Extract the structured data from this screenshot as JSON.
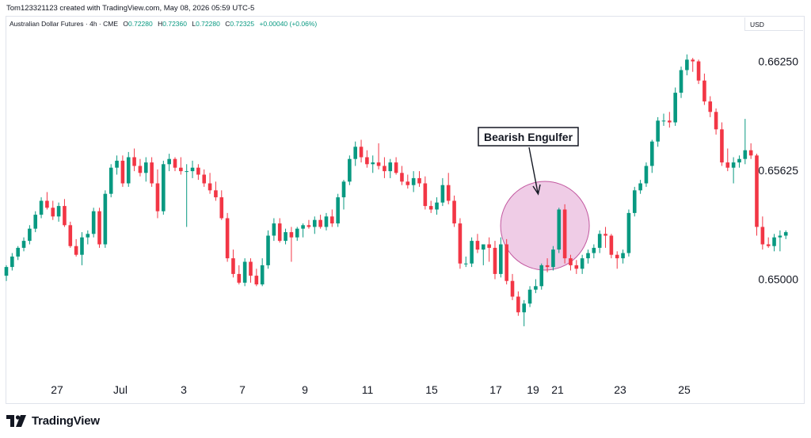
{
  "header": {
    "credit": "Tom123321123 created with TradingView.com, May 08, 2026 05:59 UTC-5"
  },
  "legend": {
    "symbol": "Australian Dollar Futures · 4h · CME",
    "open_label": "O",
    "open": "0.72280",
    "high_label": "H",
    "high": "0.72360",
    "low_label": "L",
    "low": "0.72280",
    "close_label": "C",
    "close": "0.72325",
    "change": "+0.00040 (+0.06%)"
  },
  "currency": "USD",
  "brand": {
    "name": "TradingView"
  },
  "colors": {
    "up": "#089981",
    "down": "#f23645",
    "highlight_fill": "#e1a3d1",
    "highlight_stroke": "#c2579f"
  },
  "annotation": {
    "label": "Bearish Engulfer"
  },
  "chart_data": {
    "type": "candlestick",
    "ylim": [
      0.6468,
      0.6635
    ],
    "y_ticks": [
      {
        "value": 0.6625,
        "label": "0.66250"
      },
      {
        "value": 0.65625,
        "label": "0.65625"
      },
      {
        "value": 0.65,
        "label": "0.65000"
      }
    ],
    "x_ticks": [
      "27",
      "Jul",
      "3",
      "7",
      "9",
      "11",
      "15",
      "17",
      "19",
      "21",
      "23",
      "25"
    ],
    "candles": [
      [
        0.6502,
        0.6508,
        0.6499,
        0.6507
      ],
      [
        0.6507,
        0.6515,
        0.6505,
        0.6513
      ],
      [
        0.6513,
        0.6519,
        0.6511,
        0.6518
      ],
      [
        0.6518,
        0.6524,
        0.6516,
        0.6522
      ],
      [
        0.6522,
        0.6531,
        0.652,
        0.6529
      ],
      [
        0.6529,
        0.6539,
        0.6527,
        0.6537
      ],
      [
        0.6537,
        0.6547,
        0.6535,
        0.6545
      ],
      [
        0.6545,
        0.655,
        0.654,
        0.6541
      ],
      [
        0.6541,
        0.6545,
        0.6534,
        0.6536
      ],
      [
        0.6536,
        0.6544,
        0.6533,
        0.6542
      ],
      [
        0.6542,
        0.6546,
        0.653,
        0.6531
      ],
      [
        0.6531,
        0.6533,
        0.6518,
        0.6519
      ],
      [
        0.6519,
        0.6523,
        0.6513,
        0.6514
      ],
      [
        0.6514,
        0.6527,
        0.6508,
        0.6524
      ],
      [
        0.6524,
        0.6528,
        0.652,
        0.6526
      ],
      [
        0.6526,
        0.6541,
        0.6524,
        0.6539
      ],
      [
        0.6539,
        0.6541,
        0.6518,
        0.652
      ],
      [
        0.652,
        0.6551,
        0.6518,
        0.6549
      ],
      [
        0.6549,
        0.6566,
        0.6547,
        0.6564
      ],
      [
        0.6564,
        0.6571,
        0.656,
        0.6568
      ],
      [
        0.6568,
        0.6571,
        0.6553,
        0.6555
      ],
      [
        0.6555,
        0.6573,
        0.6553,
        0.657
      ],
      [
        0.657,
        0.6575,
        0.6562,
        0.6565
      ],
      [
        0.6565,
        0.6569,
        0.6559,
        0.6561
      ],
      [
        0.6561,
        0.657,
        0.6556,
        0.6567
      ],
      [
        0.6567,
        0.657,
        0.6553,
        0.6555
      ],
      [
        0.6555,
        0.6563,
        0.6535,
        0.6539
      ],
      [
        0.6539,
        0.6568,
        0.6537,
        0.6566
      ],
      [
        0.6566,
        0.6572,
        0.6562,
        0.6569
      ],
      [
        0.6569,
        0.657,
        0.6562,
        0.6564
      ],
      [
        0.6564,
        0.657,
        0.656,
        0.6562
      ],
      [
        0.6562,
        0.6566,
        0.653,
        0.6562
      ],
      [
        0.6562,
        0.6568,
        0.6558,
        0.6564
      ],
      [
        0.6564,
        0.6566,
        0.6557,
        0.656
      ],
      [
        0.656,
        0.6563,
        0.6553,
        0.6555
      ],
      [
        0.6555,
        0.6561,
        0.6549,
        0.6551
      ],
      [
        0.6551,
        0.6556,
        0.6545,
        0.6547
      ],
      [
        0.6547,
        0.6551,
        0.6534,
        0.6535
      ],
      [
        0.6535,
        0.6538,
        0.651,
        0.6512
      ],
      [
        0.6512,
        0.6517,
        0.6501,
        0.6503
      ],
      [
        0.6503,
        0.6508,
        0.6497,
        0.6498
      ],
      [
        0.6498,
        0.6512,
        0.6496,
        0.651
      ],
      [
        0.651,
        0.6512,
        0.6498,
        0.6502
      ],
      [
        0.6502,
        0.6506,
        0.6496,
        0.6497
      ],
      [
        0.6497,
        0.6512,
        0.6496,
        0.6508
      ],
      [
        0.6508,
        0.6528,
        0.6506,
        0.6525
      ],
      [
        0.6525,
        0.6535,
        0.6522,
        0.6532
      ],
      [
        0.6532,
        0.6535,
        0.6521,
        0.6522
      ],
      [
        0.6522,
        0.6529,
        0.652,
        0.6527
      ],
      [
        0.6527,
        0.653,
        0.651,
        0.6524
      ],
      [
        0.6524,
        0.653,
        0.6522,
        0.6529
      ],
      [
        0.6529,
        0.6532,
        0.6524,
        0.6531
      ],
      [
        0.6531,
        0.6534,
        0.6529,
        0.653
      ],
      [
        0.653,
        0.6536,
        0.6526,
        0.6534
      ],
      [
        0.6534,
        0.6537,
        0.6529,
        0.653
      ],
      [
        0.653,
        0.6538,
        0.6528,
        0.6536
      ],
      [
        0.6536,
        0.654,
        0.653,
        0.6532
      ],
      [
        0.6532,
        0.6549,
        0.653,
        0.6547
      ],
      [
        0.6547,
        0.6557,
        0.654,
        0.6556
      ],
      [
        0.6556,
        0.6571,
        0.6554,
        0.6569
      ],
      [
        0.6569,
        0.6579,
        0.6565,
        0.6576
      ],
      [
        0.6576,
        0.658,
        0.6567,
        0.657
      ],
      [
        0.657,
        0.6574,
        0.6564,
        0.6566
      ],
      [
        0.6566,
        0.6571,
        0.6561,
        0.6567
      ],
      [
        0.6567,
        0.6578,
        0.6563,
        0.6565
      ],
      [
        0.6565,
        0.657,
        0.6558,
        0.6562
      ],
      [
        0.6562,
        0.6569,
        0.6558,
        0.6567
      ],
      [
        0.6567,
        0.657,
        0.656,
        0.6561
      ],
      [
        0.6561,
        0.6565,
        0.6554,
        0.6556
      ],
      [
        0.6556,
        0.656,
        0.6552,
        0.6554
      ],
      [
        0.6554,
        0.6562,
        0.655,
        0.6558
      ],
      [
        0.6558,
        0.6562,
        0.6553,
        0.6555
      ],
      [
        0.6555,
        0.6559,
        0.654,
        0.6542
      ],
      [
        0.6542,
        0.6545,
        0.6538,
        0.654
      ],
      [
        0.654,
        0.6547,
        0.6537,
        0.6544
      ],
      [
        0.6544,
        0.6558,
        0.6542,
        0.6554
      ],
      [
        0.6554,
        0.6561,
        0.6543,
        0.6545
      ],
      [
        0.6545,
        0.6548,
        0.653,
        0.6532
      ],
      [
        0.6532,
        0.6535,
        0.6506,
        0.6509
      ],
      [
        0.6509,
        0.6513,
        0.6507,
        0.6509
      ],
      [
        0.6509,
        0.6524,
        0.6507,
        0.6522
      ],
      [
        0.6522,
        0.6526,
        0.6515,
        0.6517
      ],
      [
        0.6517,
        0.652,
        0.6508,
        0.652
      ],
      [
        0.652,
        0.6524,
        0.651,
        0.6518
      ],
      [
        0.6518,
        0.6522,
        0.65,
        0.6503
      ],
      [
        0.6503,
        0.6524,
        0.6501,
        0.652
      ],
      [
        0.652,
        0.6523,
        0.6497,
        0.6499
      ],
      [
        0.6499,
        0.6503,
        0.6488,
        0.649
      ],
      [
        0.649,
        0.6493,
        0.6479,
        0.6481
      ],
      [
        0.6481,
        0.6488,
        0.6473,
        0.6486
      ],
      [
        0.6486,
        0.6496,
        0.6484,
        0.6494
      ],
      [
        0.6494,
        0.65,
        0.6492,
        0.6496
      ],
      [
        0.6496,
        0.6509,
        0.6494,
        0.6508
      ],
      [
        0.6508,
        0.6512,
        0.6504,
        0.6507
      ],
      [
        0.6507,
        0.6519,
        0.6505,
        0.6517
      ],
      [
        0.6517,
        0.6541,
        0.6515,
        0.654
      ],
      [
        0.654,
        0.6543,
        0.6509,
        0.6512
      ],
      [
        0.6512,
        0.6514,
        0.6505,
        0.6508
      ],
      [
        0.6508,
        0.6511,
        0.6503,
        0.6506
      ],
      [
        0.6506,
        0.6514,
        0.6503,
        0.6512
      ],
      [
        0.6512,
        0.6517,
        0.6509,
        0.6515
      ],
      [
        0.6515,
        0.652,
        0.6512,
        0.6518
      ],
      [
        0.6518,
        0.6528,
        0.6515,
        0.6526
      ],
      [
        0.6526,
        0.653,
        0.6518,
        0.6525
      ],
      [
        0.6525,
        0.6526,
        0.6512,
        0.6514
      ],
      [
        0.6514,
        0.6516,
        0.6506,
        0.6512
      ],
      [
        0.6512,
        0.6517,
        0.6509,
        0.6515
      ],
      [
        0.6515,
        0.654,
        0.6513,
        0.6538
      ],
      [
        0.6538,
        0.6553,
        0.6536,
        0.6551
      ],
      [
        0.6551,
        0.6557,
        0.6549,
        0.6555
      ],
      [
        0.6555,
        0.6567,
        0.6553,
        0.6565
      ],
      [
        0.6565,
        0.658,
        0.6561,
        0.6579
      ],
      [
        0.6579,
        0.6593,
        0.6576,
        0.6591
      ],
      [
        0.6591,
        0.6595,
        0.6588,
        0.6591
      ],
      [
        0.6591,
        0.6596,
        0.6587,
        0.659
      ],
      [
        0.659,
        0.661,
        0.6588,
        0.6607
      ],
      [
        0.6607,
        0.6622,
        0.6604,
        0.662
      ],
      [
        0.662,
        0.6629,
        0.6617,
        0.6626
      ],
      [
        0.6626,
        0.6627,
        0.6619,
        0.6625
      ],
      [
        0.6625,
        0.6626,
        0.6612,
        0.6614
      ],
      [
        0.6614,
        0.6618,
        0.66,
        0.6602
      ],
      [
        0.6602,
        0.6605,
        0.6593,
        0.6596
      ],
      [
        0.6596,
        0.6598,
        0.6583,
        0.6586
      ],
      [
        0.6586,
        0.659,
        0.6565,
        0.6567
      ],
      [
        0.6567,
        0.6575,
        0.6562,
        0.6564
      ],
      [
        0.6564,
        0.657,
        0.6555,
        0.6567
      ],
      [
        0.6567,
        0.6571,
        0.6564,
        0.6569
      ],
      [
        0.6569,
        0.6592,
        0.6566,
        0.6574
      ],
      [
        0.6574,
        0.6578,
        0.6569,
        0.6571
      ],
      [
        0.6571,
        0.6572,
        0.6525,
        0.653
      ],
      [
        0.653,
        0.6536,
        0.6517,
        0.652
      ],
      [
        0.652,
        0.6524,
        0.6518,
        0.6519
      ],
      [
        0.6519,
        0.6526,
        0.6516,
        0.6524
      ],
      [
        0.6524,
        0.6528,
        0.6516,
        0.6525
      ],
      [
        0.6525,
        0.6528,
        0.6523,
        0.6527
      ]
    ]
  }
}
